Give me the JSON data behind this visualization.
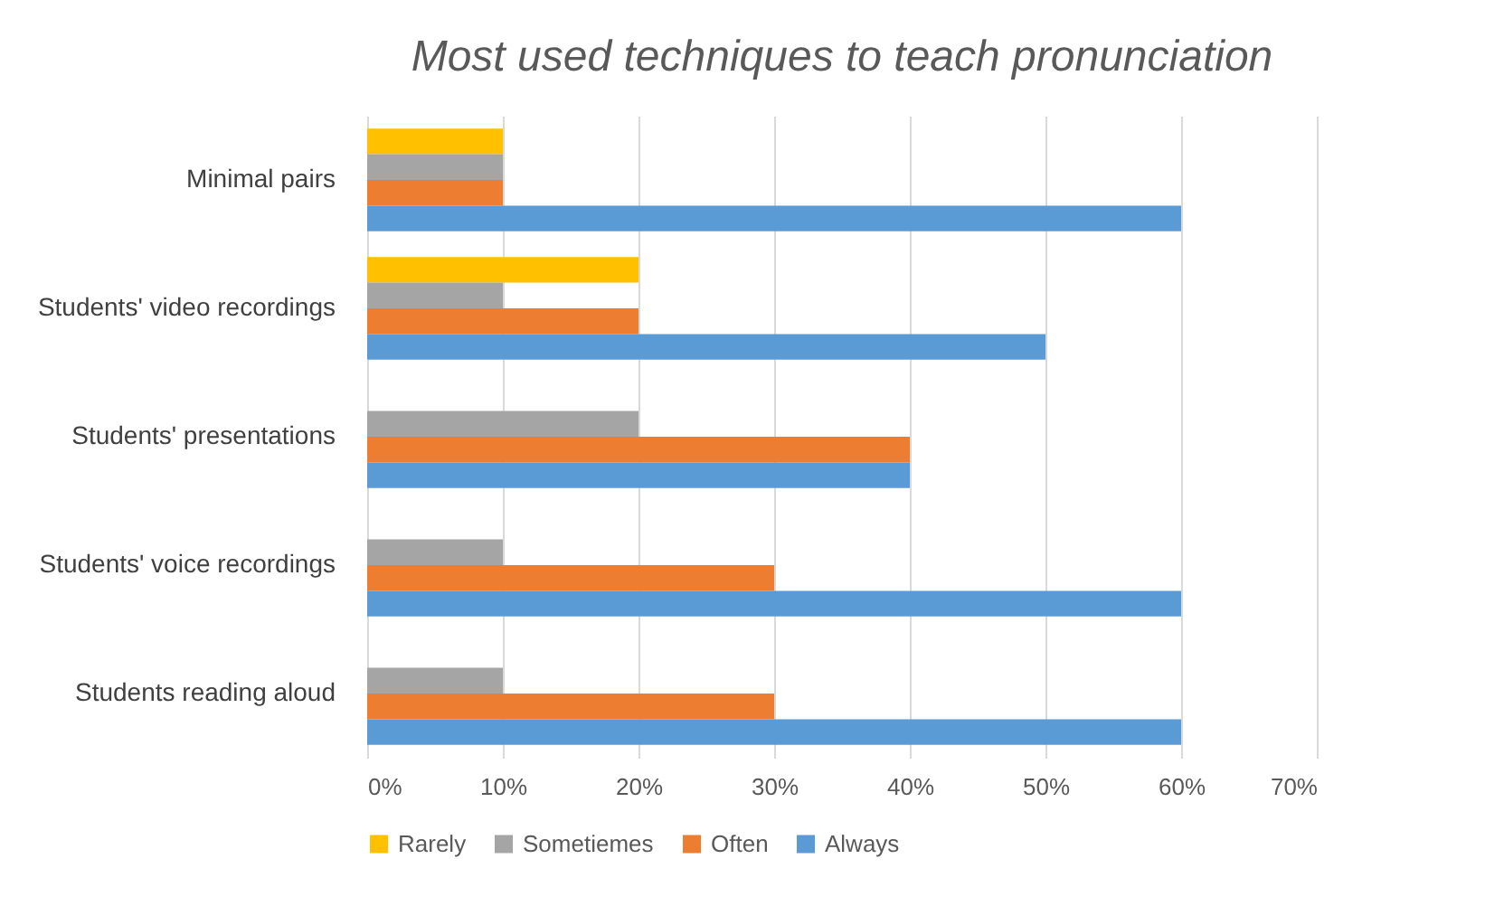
{
  "chart_data": {
    "type": "bar",
    "orientation": "horizontal",
    "title": "Most used techniques to teach pronunciation",
    "categories": [
      "Minimal pairs",
      "Students' video recordings",
      "Students' presentations",
      "Students' voice recordings",
      "Students reading aloud"
    ],
    "series": [
      {
        "name": "Rarely",
        "color": "#ffc000",
        "values": [
          10,
          20,
          0,
          0,
          0
        ]
      },
      {
        "name": "Sometiemes",
        "color": "#a5a5a5",
        "values": [
          10,
          10,
          20,
          10,
          10
        ]
      },
      {
        "name": "Often",
        "color": "#ed7d31",
        "values": [
          10,
          20,
          40,
          30,
          30
        ]
      },
      {
        "name": "Always",
        "color": "#5b9bd5",
        "values": [
          60,
          50,
          40,
          60,
          60
        ]
      }
    ],
    "xlim": [
      0,
      70
    ],
    "xticks": [
      {
        "value": 0,
        "label": "0%"
      },
      {
        "value": 10,
        "label": "10%"
      },
      {
        "value": 20,
        "label": "20%"
      },
      {
        "value": 30,
        "label": "30%"
      },
      {
        "value": 40,
        "label": "40%"
      },
      {
        "value": 50,
        "label": "50%"
      },
      {
        "value": 60,
        "label": "60%"
      },
      {
        "value": 70,
        "label": "70%"
      }
    ],
    "grid": "x",
    "legend": "bottom"
  }
}
